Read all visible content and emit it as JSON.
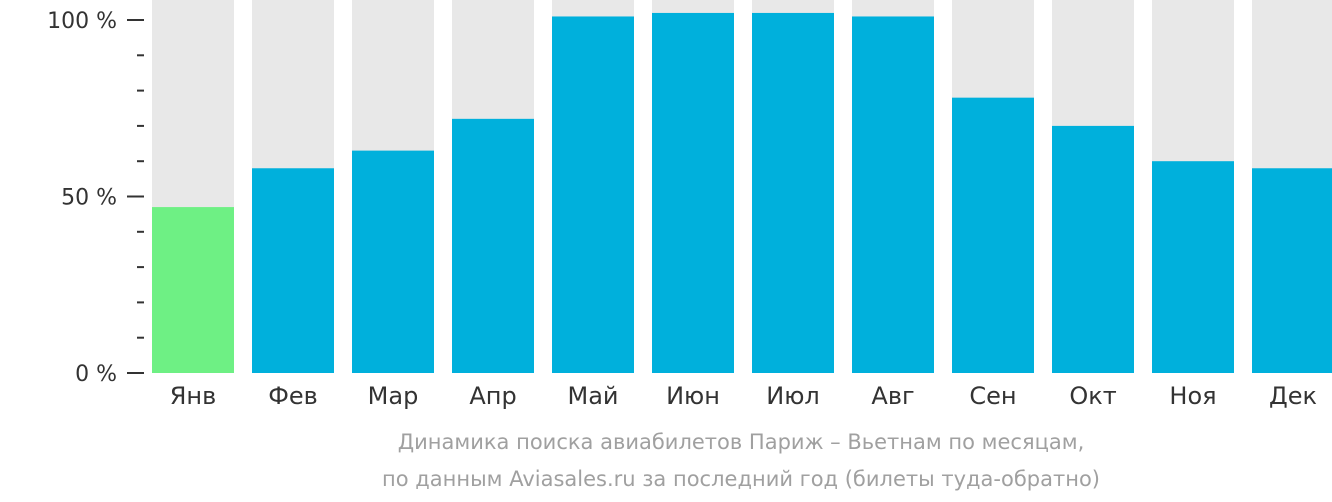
{
  "chart_data": {
    "type": "bar",
    "categories": [
      "Янв",
      "Фев",
      "Мар",
      "Апр",
      "Май",
      "Июн",
      "Июл",
      "Авг",
      "Сен",
      "Окт",
      "Ноя",
      "Дек"
    ],
    "values": [
      47,
      58,
      63,
      72,
      101,
      102,
      102,
      101,
      78,
      70,
      60,
      58
    ],
    "y_ticks": [
      {
        "value": 100,
        "label": "100 %"
      },
      {
        "value": 50,
        "label": "50 %"
      },
      {
        "value": 0,
        "label": "0 %"
      }
    ],
    "ylim": [
      0,
      100
    ],
    "highlight_index": 0,
    "colors": {
      "bar": "#00b0dc",
      "highlight": "#6ef084",
      "background_bar": "#e8e8e8",
      "axis": "#333333",
      "caption": "#a0a0a0"
    },
    "caption_line1": "Динамика поиска авиабилетов Париж – Вьетнам по месяцам,",
    "caption_line2": "по данным Aviasales.ru за последний год (билеты туда-обратно)"
  }
}
